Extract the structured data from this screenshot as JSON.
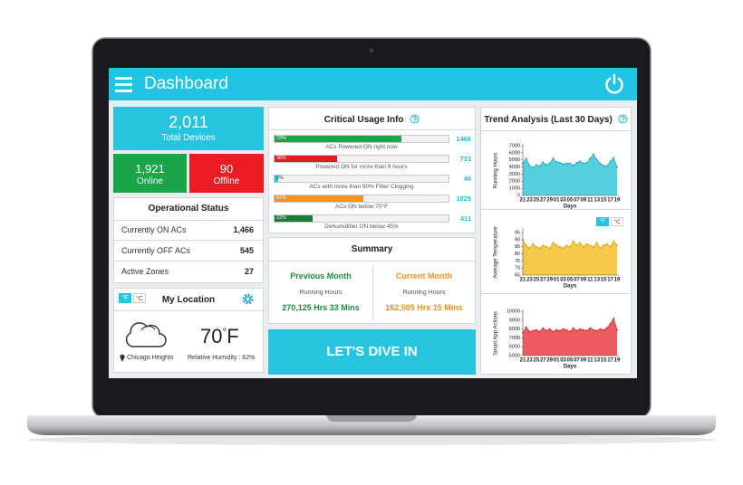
{
  "header": {
    "title": "Dashboard"
  },
  "devices": {
    "total": "2,011",
    "total_label": "Total Devices",
    "online": "1,921",
    "online_label": "Online",
    "offline": "90",
    "offline_label": "Offline"
  },
  "operational_status": {
    "title": "Operational Status",
    "rows": [
      [
        "Currently ON ACs",
        "1,466"
      ],
      [
        "Currently OFF ACs",
        "545"
      ],
      [
        "Active Zones",
        "27"
      ]
    ]
  },
  "location": {
    "units": [
      "°F",
      "°C"
    ],
    "title": "My Location",
    "temperature": "70",
    "degree": "°",
    "unit": "F",
    "city": "Chicago Heights",
    "humidity": "Relative Humidity : 62%"
  },
  "critical_usage": {
    "title": "Critical Usage Info",
    "xlim": [
      0,
      100
    ],
    "values": [
      73,
      36,
      2,
      51,
      22
    ],
    "value_labels": [
      "73%",
      "36%",
      "2%",
      "51%",
      "22%"
    ],
    "counts": [
      "1466",
      "733",
      "40",
      "1025",
      "411"
    ],
    "captions": [
      "ACs Powered ON right now",
      "Powered ON for more than 9 hours",
      "ACs with more than 90% Filter Clogging",
      "ACs ON below 70°F",
      "Dehumidifier ON below 45%"
    ],
    "colors": [
      "#1fa34a",
      "#e5191f",
      "#27c4df",
      "#f39323",
      "#1b7a3a"
    ]
  },
  "summary": {
    "title": "Summary",
    "columns": [
      {
        "heading": "Previous Month",
        "label": "Running Hours",
        "value": "270,125 Hrs 33 Mins",
        "color": "#1a8d3a"
      },
      {
        "heading": "Current Month",
        "label": "Running Hours",
        "value": "162,505 Hrs 15 Mins",
        "color": "#f39020"
      }
    ]
  },
  "cta": "LET'S DIVE IN",
  "trend": {
    "title": "Trend Analysis (Last 30 Days)",
    "units": [
      "°F",
      "°C"
    ]
  },
  "chart_data": [
    {
      "type": "area",
      "x_label": "Days",
      "y_label": "Running Hours",
      "color": "#55cfdf",
      "line_color": "#2aa9bb",
      "categories": [
        "21",
        null,
        "23",
        null,
        "25",
        null,
        "27",
        null,
        "29",
        null,
        "01",
        null,
        "03",
        null,
        "05",
        null,
        "07",
        null,
        "09",
        null,
        "11",
        null,
        "13",
        null,
        "15",
        null,
        "17",
        null,
        "19"
      ],
      "values": [
        4500,
        5200,
        4200,
        3900,
        4300,
        4100,
        4700,
        4300,
        4500,
        5200,
        4700,
        4600,
        4400,
        4500,
        4500,
        4200,
        4600,
        4800,
        4500,
        4600,
        5200,
        5800,
        5000,
        4500,
        4200,
        4100,
        4800,
        5300,
        4000
      ],
      "ylim": [
        0,
        7000
      ],
      "yticks": [
        0,
        1000,
        2000,
        3000,
        4000,
        5000,
        6000,
        7000
      ]
    },
    {
      "type": "area",
      "x_label": "Days",
      "y_label": "Average Temperature",
      "color": "#f6c94a",
      "line_color": "#d9a61c",
      "categories": [
        "21",
        null,
        "23",
        null,
        "25",
        null,
        "27",
        null,
        "29",
        null,
        "01",
        null,
        "03",
        null,
        "05",
        null,
        "07",
        null,
        "09",
        null,
        "11",
        null,
        "13",
        null,
        "15",
        null,
        "17",
        null,
        "19"
      ],
      "values": [
        90,
        86,
        84,
        87,
        85,
        84,
        86,
        85,
        84,
        88,
        86,
        85,
        84,
        86,
        85,
        89,
        86,
        88,
        85,
        87,
        86,
        85,
        88,
        84,
        86,
        87,
        85,
        89,
        86
      ],
      "ylim": [
        65,
        97
      ],
      "yticks": [
        65,
        70,
        75,
        80,
        85,
        90,
        95
      ]
    },
    {
      "type": "area",
      "x_label": "Days",
      "y_label": "Smart App Actions",
      "color": "#ef5a61",
      "line_color": "#c8353c",
      "categories": [
        "21",
        null,
        "23",
        null,
        "25",
        null,
        "27",
        null,
        "29",
        null,
        "01",
        null,
        "03",
        null,
        "05",
        null,
        "07",
        null,
        "09",
        null,
        "11",
        null,
        "13",
        null,
        "15",
        null,
        "17",
        null,
        "19"
      ],
      "values": [
        7600,
        8200,
        7700,
        7800,
        7900,
        7700,
        8100,
        7800,
        8000,
        7700,
        7900,
        7800,
        8000,
        7900,
        7700,
        8100,
        7800,
        8000,
        7900,
        7800,
        8100,
        7900,
        7800,
        8000,
        7900,
        8100,
        8600,
        9200,
        7900
      ],
      "ylim": [
        5000,
        10000
      ],
      "yticks": [
        5000,
        6000,
        7000,
        8000,
        9000,
        10000
      ]
    }
  ]
}
